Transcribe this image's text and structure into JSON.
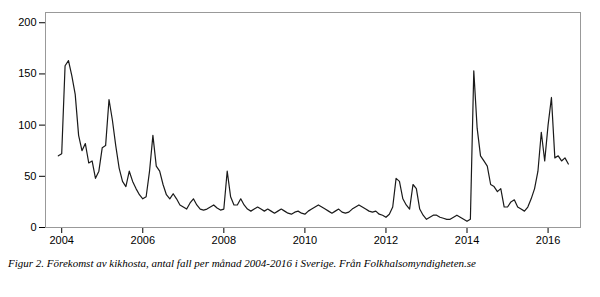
{
  "chart_data": {
    "type": "line",
    "caption": "Figur 2. Förekomst av kikhosta, antal fall per månad 2004-2016 i Sverige. Från Folkhalsomyndigheten.se",
    "color": "#1a1a1a",
    "xlim": [
      2003.6,
      2016.8
    ],
    "ylim": [
      0,
      210
    ],
    "yticks": [
      0,
      50,
      100,
      150,
      200
    ],
    "xticks": [
      2004,
      2006,
      2008,
      2010,
      2012,
      2014,
      2016
    ],
    "grid": false,
    "x": [
      2003.917,
      2004.0,
      2004.083,
      2004.167,
      2004.25,
      2004.333,
      2004.417,
      2004.5,
      2004.583,
      2004.667,
      2004.75,
      2004.833,
      2004.917,
      2005.0,
      2005.083,
      2005.167,
      2005.25,
      2005.333,
      2005.417,
      2005.5,
      2005.583,
      2005.667,
      2005.75,
      2005.833,
      2005.917,
      2006.0,
      2006.083,
      2006.167,
      2006.25,
      2006.333,
      2006.417,
      2006.5,
      2006.583,
      2006.667,
      2006.75,
      2006.833,
      2006.917,
      2007.0,
      2007.083,
      2007.167,
      2007.25,
      2007.333,
      2007.417,
      2007.5,
      2007.583,
      2007.667,
      2007.75,
      2007.833,
      2007.917,
      2008.0,
      2008.083,
      2008.167,
      2008.25,
      2008.333,
      2008.417,
      2008.5,
      2008.583,
      2008.667,
      2008.75,
      2008.833,
      2008.917,
      2009.0,
      2009.083,
      2009.167,
      2009.25,
      2009.333,
      2009.417,
      2009.5,
      2009.583,
      2009.667,
      2009.75,
      2009.833,
      2009.917,
      2010.0,
      2010.083,
      2010.167,
      2010.25,
      2010.333,
      2010.417,
      2010.5,
      2010.583,
      2010.667,
      2010.75,
      2010.833,
      2010.917,
      2011.0,
      2011.083,
      2011.167,
      2011.25,
      2011.333,
      2011.417,
      2011.5,
      2011.583,
      2011.667,
      2011.75,
      2011.833,
      2011.917,
      2012.0,
      2012.083,
      2012.167,
      2012.25,
      2012.333,
      2012.417,
      2012.5,
      2012.583,
      2012.667,
      2012.75,
      2012.833,
      2012.917,
      2013.0,
      2013.083,
      2013.167,
      2013.25,
      2013.333,
      2013.417,
      2013.5,
      2013.583,
      2013.667,
      2013.75,
      2013.833,
      2013.917,
      2014.0,
      2014.083,
      2014.167,
      2014.25,
      2014.333,
      2014.417,
      2014.5,
      2014.583,
      2014.667,
      2014.75,
      2014.833,
      2014.917,
      2015.0,
      2015.083,
      2015.167,
      2015.25,
      2015.333,
      2015.417,
      2015.5,
      2015.583,
      2015.667,
      2015.75,
      2015.833,
      2015.917,
      2016.0,
      2016.083,
      2016.167,
      2016.25,
      2016.333,
      2016.417,
      2016.5
    ],
    "values": [
      70,
      72,
      158,
      163,
      148,
      130,
      90,
      75,
      82,
      63,
      65,
      48,
      55,
      78,
      80,
      125,
      105,
      80,
      58,
      45,
      40,
      55,
      45,
      38,
      32,
      28,
      30,
      55,
      90,
      60,
      55,
      42,
      32,
      28,
      33,
      28,
      22,
      20,
      18,
      24,
      28,
      22,
      18,
      17,
      18,
      20,
      22,
      19,
      17,
      18,
      55,
      30,
      22,
      22,
      28,
      22,
      18,
      16,
      18,
      20,
      18,
      16,
      18,
      16,
      14,
      16,
      18,
      16,
      14,
      13,
      15,
      16,
      14,
      13,
      16,
      18,
      20,
      22,
      20,
      18,
      16,
      14,
      16,
      18,
      15,
      14,
      15,
      18,
      20,
      22,
      20,
      18,
      16,
      15,
      16,
      13,
      12,
      10,
      13,
      20,
      48,
      45,
      28,
      22,
      18,
      42,
      38,
      18,
      12,
      8,
      10,
      12,
      12,
      10,
      9,
      8,
      8,
      10,
      12,
      10,
      8,
      6,
      8,
      153,
      97,
      70,
      65,
      60,
      42,
      40,
      35,
      38,
      20,
      20,
      25,
      27,
      20,
      18,
      16,
      20,
      28,
      38,
      55,
      93,
      65,
      100,
      127,
      68,
      70,
      65,
      68,
      62
    ]
  }
}
